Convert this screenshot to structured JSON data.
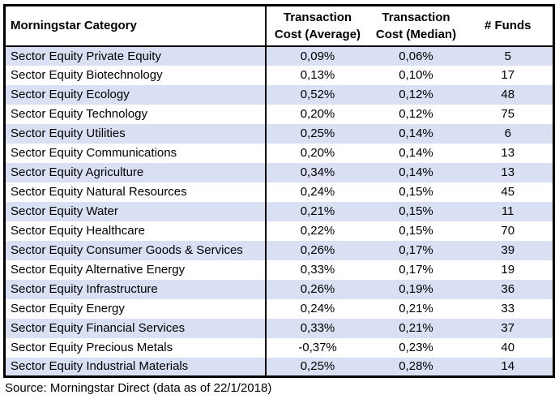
{
  "table": {
    "columns": [
      {
        "label": "Morningstar Category"
      },
      {
        "line1": "Transaction",
        "line2": "Cost (Average)"
      },
      {
        "line1": "Transaction",
        "line2": "Cost (Median)"
      },
      {
        "label": "# Funds"
      }
    ],
    "rows": [
      {
        "category": "Sector Equity Private Equity",
        "avg": "0,09%",
        "median": "0,06%",
        "funds": "5"
      },
      {
        "category": "Sector Equity Biotechnology",
        "avg": "0,13%",
        "median": "0,10%",
        "funds": "17"
      },
      {
        "category": "Sector Equity Ecology",
        "avg": "0,52%",
        "median": "0,12%",
        "funds": "48"
      },
      {
        "category": "Sector Equity Technology",
        "avg": "0,20%",
        "median": "0,12%",
        "funds": "75"
      },
      {
        "category": "Sector Equity Utilities",
        "avg": "0,25%",
        "median": "0,14%",
        "funds": "6"
      },
      {
        "category": "Sector Equity Communications",
        "avg": "0,20%",
        "median": "0,14%",
        "funds": "13"
      },
      {
        "category": "Sector Equity Agriculture",
        "avg": "0,34%",
        "median": "0,14%",
        "funds": "13"
      },
      {
        "category": "Sector Equity Natural Resources",
        "avg": "0,24%",
        "median": "0,15%",
        "funds": "45"
      },
      {
        "category": "Sector Equity Water",
        "avg": "0,21%",
        "median": "0,15%",
        "funds": "11"
      },
      {
        "category": "Sector Equity Healthcare",
        "avg": "0,22%",
        "median": "0,15%",
        "funds": "70"
      },
      {
        "category": "Sector Equity Consumer Goods & Services",
        "avg": "0,26%",
        "median": "0,17%",
        "funds": "39"
      },
      {
        "category": "Sector Equity Alternative Energy",
        "avg": "0,33%",
        "median": "0,17%",
        "funds": "19"
      },
      {
        "category": "Sector Equity Infrastructure",
        "avg": "0,26%",
        "median": "0,19%",
        "funds": "36"
      },
      {
        "category": "Sector Equity Energy",
        "avg": "0,24%",
        "median": "0,21%",
        "funds": "33"
      },
      {
        "category": "Sector Equity Financial Services",
        "avg": "0,33%",
        "median": "0,21%",
        "funds": "37"
      },
      {
        "category": "Sector Equity Precious Metals",
        "avg": "-0,37%",
        "median": "0,23%",
        "funds": "40"
      },
      {
        "category": "Sector Equity Industrial Materials",
        "avg": "0,25%",
        "median": "0,28%",
        "funds": "14"
      }
    ]
  },
  "source": "Source: Morningstar Direct (data as of 22/1/2018)",
  "colors": {
    "band_row": "#D9E0F3",
    "border": "#000000",
    "text": "#000000",
    "background": "#FFFFFF"
  },
  "chart_data": {
    "type": "table",
    "title": "",
    "columns": [
      "Morningstar Category",
      "Transaction Cost (Average)",
      "Transaction Cost (Median)",
      "# Funds"
    ],
    "rows": [
      [
        "Sector Equity Private Equity",
        "0,09%",
        "0,06%",
        5
      ],
      [
        "Sector Equity Biotechnology",
        "0,13%",
        "0,10%",
        17
      ],
      [
        "Sector Equity Ecology",
        "0,52%",
        "0,12%",
        48
      ],
      [
        "Sector Equity Technology",
        "0,20%",
        "0,12%",
        75
      ],
      [
        "Sector Equity Utilities",
        "0,25%",
        "0,14%",
        6
      ],
      [
        "Sector Equity Communications",
        "0,20%",
        "0,14%",
        13
      ],
      [
        "Sector Equity Agriculture",
        "0,34%",
        "0,14%",
        13
      ],
      [
        "Sector Equity Natural Resources",
        "0,24%",
        "0,15%",
        45
      ],
      [
        "Sector Equity Water",
        "0,21%",
        "0,15%",
        11
      ],
      [
        "Sector Equity Healthcare",
        "0,22%",
        "0,15%",
        70
      ],
      [
        "Sector Equity Consumer Goods & Services",
        "0,26%",
        "0,17%",
        39
      ],
      [
        "Sector Equity Alternative Energy",
        "0,33%",
        "0,17%",
        19
      ],
      [
        "Sector Equity Infrastructure",
        "0,26%",
        "0,19%",
        36
      ],
      [
        "Sector Equity Energy",
        "0,24%",
        "0,21%",
        33
      ],
      [
        "Sector Equity Financial Services",
        "0,33%",
        "0,21%",
        37
      ],
      [
        "Sector Equity Precious Metals",
        "-0,37%",
        "0,23%",
        40
      ],
      [
        "Sector Equity Industrial Materials",
        "0,25%",
        "0,28%",
        14
      ]
    ],
    "source_note": "Source: Morningstar Direct (data as of 22/1/2018)"
  }
}
